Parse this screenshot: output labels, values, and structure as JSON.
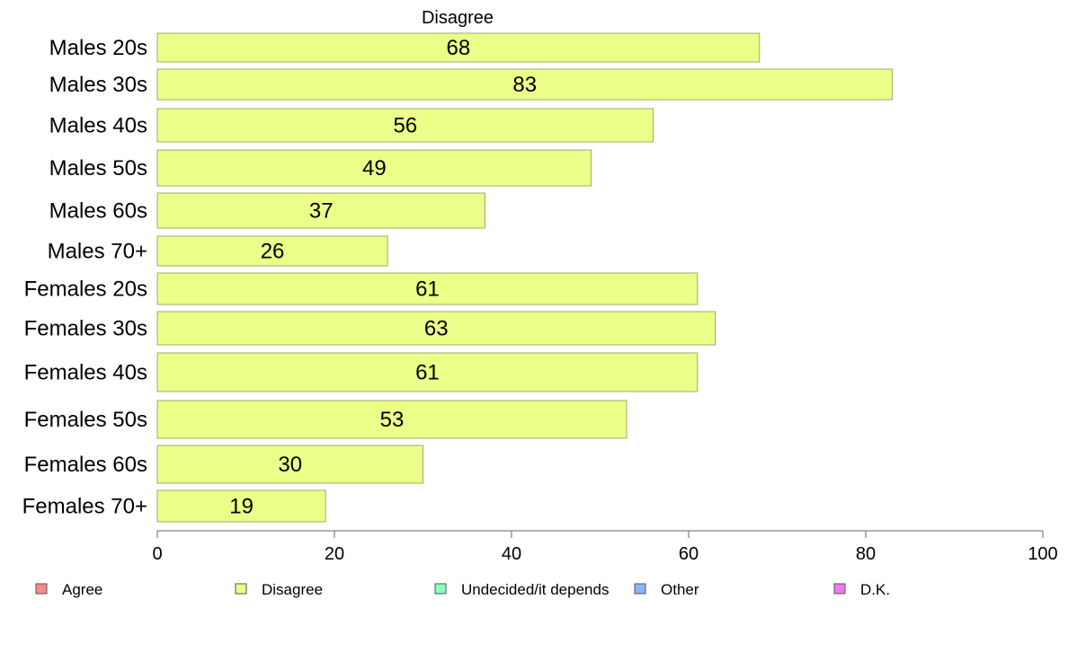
{
  "chart_data": {
    "type": "bar",
    "orientation": "horizontal",
    "title": "Disagree",
    "categories": [
      "Males 20s",
      "Males 30s",
      "Males 40s",
      "Males 50s",
      "Males 60s",
      "Males 70+",
      "Females 20s",
      "Females 30s",
      "Females 40s",
      "Females 50s",
      "Females 60s",
      "Females 70+"
    ],
    "values": [
      68,
      83,
      56,
      49,
      37,
      26,
      61,
      63,
      61,
      53,
      30,
      19
    ],
    "value_labels": [
      "68",
      "83",
      "56",
      "49",
      "37",
      "26",
      "61",
      "63",
      "61",
      "53",
      "30",
      "19"
    ],
    "series_color": "#ecff88",
    "bar_stroke": "#a0a870",
    "xlim": [
      0,
      100
    ],
    "xticks": [
      0,
      20,
      40,
      60,
      80,
      100
    ],
    "xtick_labels": [
      "0",
      "20",
      "40",
      "60",
      "80",
      "100"
    ],
    "grid": false,
    "legend_position": "bottom",
    "legend": [
      {
        "label": "Agree",
        "color": "#f58a8a"
      },
      {
        "label": "Disagree",
        "color": "#ecff88"
      },
      {
        "label": "Undecided/it depends",
        "color": "#8affc0"
      },
      {
        "label": "Other",
        "color": "#8ab4f5"
      },
      {
        "label": "D.K.",
        "color": "#ee7af0"
      }
    ]
  }
}
